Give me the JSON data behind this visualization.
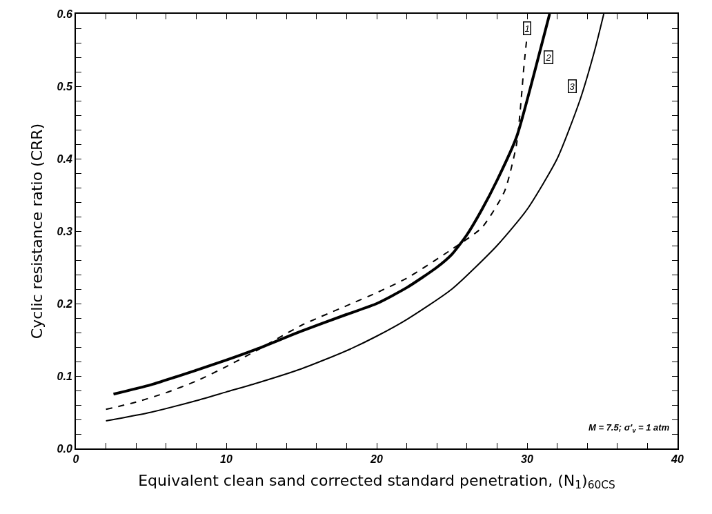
{
  "chart_data": {
    "type": "line",
    "xlabel": "Equivalent clean sand corrected standard penetration, (N$_{1}$)$_{60CS}$",
    "ylabel": "Cyclic resistance ratio (CRR)",
    "series": [
      {
        "color": "#000000",
        "line_style": "dashed",
        "x": [
          2,
          4,
          6,
          8,
          10,
          12,
          15,
          18,
          20,
          22,
          25,
          27,
          28.5,
          29.3,
          29.6,
          29.8,
          30
        ],
        "values": [
          0.054,
          0.064,
          0.077,
          0.093,
          0.113,
          0.135,
          0.17,
          0.197,
          0.215,
          0.235,
          0.275,
          0.305,
          0.355,
          0.42,
          0.48,
          0.53,
          0.57
        ]
      },
      {
        "color": "#000000",
        "line_style": "solid",
        "x": [
          2.5,
          5,
          8,
          10,
          12,
          15,
          18,
          20,
          22,
          24,
          25,
          26,
          27,
          28,
          29.3,
          30.5,
          31.5
        ],
        "values": [
          0.075,
          0.088,
          0.108,
          0.122,
          0.137,
          0.162,
          0.185,
          0.2,
          0.222,
          0.25,
          0.268,
          0.295,
          0.33,
          0.37,
          0.43,
          0.52,
          0.6
        ]
      },
      {
        "color": "#000000",
        "line_style": "solid",
        "x": [
          2,
          5,
          8,
          10,
          12,
          15,
          18,
          20,
          22,
          25,
          28,
          30,
          32,
          33.5,
          34.5,
          35.1
        ],
        "values": [
          0.038,
          0.05,
          0.066,
          0.078,
          0.09,
          0.11,
          0.135,
          0.155,
          0.178,
          0.22,
          0.28,
          0.33,
          0.4,
          0.48,
          0.55,
          0.6
        ]
      }
    ],
    "xlim": [
      0,
      40
    ],
    "ylim": [
      0,
      0.6
    ],
    "xticks": [
      0,
      {
        "value": 2,
        "label": null
      },
      {
        "value": 4,
        "label": null
      },
      {
        "value": 6,
        "label": null
      },
      {
        "value": 8,
        "label": null
      },
      10,
      {
        "value": 12,
        "label": null
      },
      {
        "value": 14,
        "label": null
      },
      {
        "value": 16,
        "label": null
      },
      {
        "value": 18,
        "label": null
      },
      20,
      {
        "value": 22,
        "label": null
      },
      {
        "value": 24,
        "label": null
      },
      {
        "value": 26,
        "label": null
      },
      {
        "value": 28,
        "label": null
      },
      30,
      {
        "value": 32,
        "label": null
      },
      {
        "value": 34,
        "label": null
      },
      {
        "value": 36,
        "label": null
      },
      {
        "value": 38,
        "label": null
      },
      40
    ],
    "yticks": [
      {
        "value": 0,
        "label": "0.0"
      },
      {
        "value": 0.02,
        "label": null
      },
      {
        "value": 0.04,
        "label": null
      },
      {
        "value": 0.06,
        "label": null
      },
      {
        "value": 0.08,
        "label": null
      },
      0.1,
      {
        "value": 0.12,
        "label": null
      },
      {
        "value": 0.14,
        "label": null
      },
      {
        "value": 0.16,
        "label": null
      },
      {
        "value": 0.18,
        "label": null
      },
      0.2,
      {
        "value": 0.22,
        "label": null
      },
      {
        "value": 0.24,
        "label": null
      },
      {
        "value": 0.26,
        "label": null
      },
      {
        "value": 0.28,
        "label": null
      },
      0.3,
      {
        "value": 0.32,
        "label": null
      },
      {
        "value": 0.34,
        "label": null
      },
      {
        "value": 0.36,
        "label": null
      },
      {
        "value": 0.38,
        "label": null
      },
      0.4,
      {
        "value": 0.42,
        "label": null
      },
      {
        "value": 0.44,
        "label": null
      },
      {
        "value": 0.46,
        "label": null
      },
      {
        "value": 0.48,
        "label": null
      },
      0.5,
      {
        "value": 0.52,
        "label": null
      },
      {
        "value": 0.54,
        "label": null
      },
      {
        "value": 0.56,
        "label": null
      },
      {
        "value": 0.58,
        "label": null
      },
      0.6
    ],
    "annotations": [
      {
        "text": "1",
        "x": 30,
        "y": 0.58
      },
      {
        "text": "2",
        "x": 31.4,
        "y": 0.54
      },
      {
        "text": "3",
        "x": 33.0,
        "y": 0.5
      },
      "M = 7.5; σ'$_{v}$ = 1 atm"
    ],
    "marker": "none"
  }
}
